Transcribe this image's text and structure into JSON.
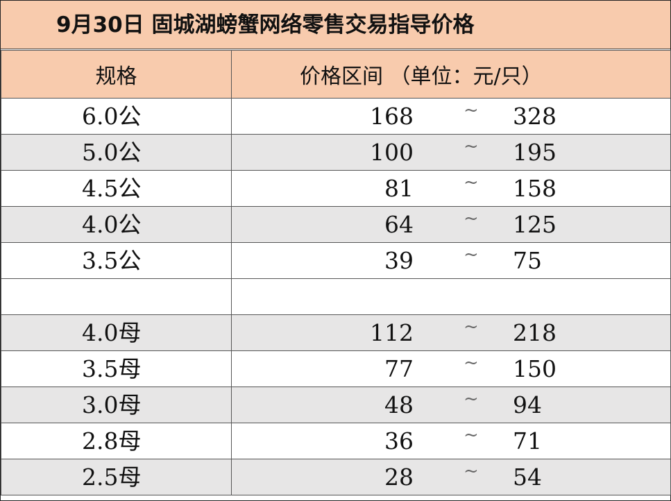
{
  "title": "9月30日 固城湖螃蟹网络零售交易指导价格",
  "header": {
    "spec": "规格",
    "price": "价格区间 （单位：元/只）"
  },
  "tilde": "~",
  "rows": [
    {
      "spec": "6.0公",
      "low": "168",
      "high": "328",
      "shaded": false
    },
    {
      "spec": "5.0公",
      "low": "100",
      "high": "195",
      "shaded": true
    },
    {
      "spec": "4.5公",
      "low": "81",
      "high": "158",
      "shaded": false
    },
    {
      "spec": "4.0公",
      "low": "64",
      "high": "125",
      "shaded": true
    },
    {
      "spec": "3.5公",
      "low": "39",
      "high": "75",
      "shaded": false
    },
    {
      "spec": "",
      "low": "",
      "high": "",
      "shaded": false,
      "blank": true
    },
    {
      "spec": "4.0母",
      "low": "112",
      "high": "218",
      "shaded": true
    },
    {
      "spec": "3.5母",
      "low": "77",
      "high": "150",
      "shaded": false
    },
    {
      "spec": "3.0母",
      "low": "48",
      "high": "94",
      "shaded": true
    },
    {
      "spec": "2.8母",
      "low": "36",
      "high": "71",
      "shaded": false
    },
    {
      "spec": "2.5母",
      "low": "28",
      "high": "54",
      "shaded": true
    }
  ],
  "colors": {
    "header_bg": "#f8cbad",
    "shade_bg": "#e7e6e6"
  }
}
